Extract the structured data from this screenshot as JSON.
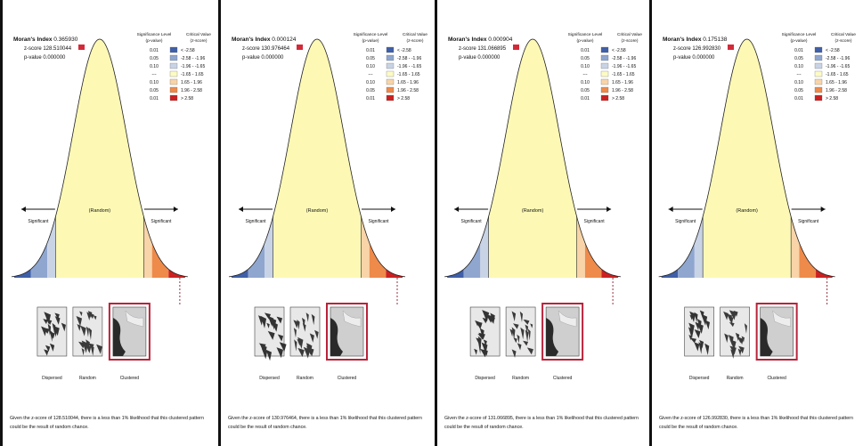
{
  "panels": [
    {
      "morans_index_label": "Moran's Index",
      "morans_index": "0.365930",
      "zscore_label": "z-score",
      "zscore": "128.510044",
      "pvalue_label": "p-value",
      "pvalue": "0.000000",
      "caption": [
        "Given the z-score of 128.510044, there is a less than 1% likelihood that this clustered pattern",
        "could be the result of random chance."
      ]
    },
    {
      "morans_index_label": "Moran's Index",
      "morans_index": "0.000124",
      "zscore_label": "z-score",
      "zscore": "130.976464",
      "pvalue_label": "p-value",
      "pvalue": "0.000000",
      "caption": [
        "Given the z-score of 130.976464, there is a less than 1% likelihood that this clustered pattern",
        "could be the result of random chance."
      ]
    },
    {
      "morans_index_label": "Moran's Index",
      "morans_index": "0.000904",
      "zscore_label": "z-score",
      "zscore": "131.066895",
      "pvalue_label": "p-value",
      "pvalue": "0.000000",
      "caption": [
        "Given the z-score of 131.066895, there is a less than 1% likelihood that this clustered pattern",
        "could be the result of random chance."
      ]
    },
    {
      "morans_index_label": "Moran's Index",
      "morans_index": "0.175138",
      "zscore_label": "z-score",
      "zscore": "126.992830",
      "pvalue_label": "p-value",
      "pvalue": "0.000000",
      "caption": [
        "Given the z-score of 126.992830, there is a less than 1% likelihood that this clustered pattern",
        "could be the result of random chance."
      ]
    }
  ],
  "legend": {
    "sig_header": [
      "Significance Level",
      "(p-value)"
    ],
    "crit_header": [
      "Critical Value",
      "(z-score)"
    ],
    "rows": [
      {
        "p": "0.01",
        "z": "< -2.58",
        "color": "#3f5fa8"
      },
      {
        "p": "0.05",
        "z": "-2.58 - -1.96",
        "color": "#8fa6cf"
      },
      {
        "p": "0.10",
        "z": "-1.96 - -1.65",
        "color": "#c9d3e6"
      },
      {
        "p": "---",
        "z": "-1.65 - 1.65",
        "color": "#fdfbc4"
      },
      {
        "p": "0.10",
        "z": "1.65 - 1.96",
        "color": "#f8d4a8"
      },
      {
        "p": "0.05",
        "z": "1.96 - 2.58",
        "color": "#ee8a4a"
      },
      {
        "p": "0.01",
        "z": "> 2.58",
        "color": "#cc2020"
      }
    ]
  },
  "curve": {
    "random_label": "(Random)",
    "left_label": "Significant",
    "right_label": "Significant"
  },
  "patterns": [
    "Dispersed",
    "Random",
    "Clustered"
  ],
  "colors": {
    "bell_fill": "#fdf9b5",
    "bell_stroke": "#222222",
    "highlight_box": "#b8233a",
    "zscore_badge": "#d32a3a"
  }
}
